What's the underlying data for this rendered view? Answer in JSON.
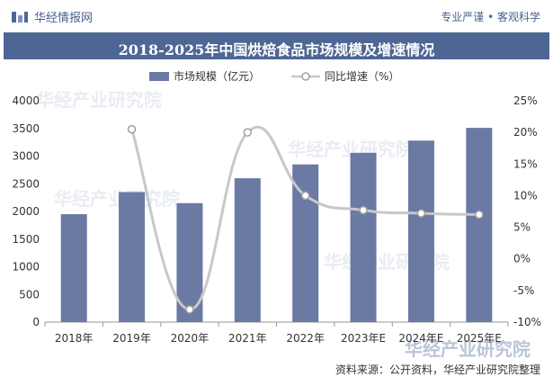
{
  "header": {
    "brand_name": "华经情报网",
    "slogan": "专业严谨 • 客观科学"
  },
  "title": "2018-2025年中国烘焙食品市场规模及增速情况",
  "legend": {
    "bar_label": "市场规模（亿元）",
    "line_label": "同比增速（%）"
  },
  "watermark": "华经产业研究院",
  "source": "资料来源：公开资料，华经产业研究院整理",
  "colors": {
    "bar": "#6a7aa3",
    "line": "#c8c8c8",
    "title_bg": "#4e6694",
    "marker": "#ffffff"
  },
  "chart_data": {
    "type": "bar",
    "categories": [
      "2018年",
      "2019年",
      "2020年",
      "2021年",
      "2022年",
      "2023年E",
      "2024年E",
      "2025年E"
    ],
    "series": [
      {
        "name": "市场规模（亿元）",
        "type": "bar",
        "axis": "left",
        "values": [
          1950,
          2350,
          2150,
          2600,
          2850,
          3060,
          3280,
          3510
        ]
      },
      {
        "name": "同比增速（%）",
        "type": "line",
        "axis": "right",
        "smooth": true,
        "values": [
          null,
          20.5,
          -8.0,
          20.0,
          10.0,
          7.7,
          7.2,
          7.0
        ]
      }
    ],
    "y_left": {
      "min": 0,
      "max": 4000,
      "step": 500,
      "ticks": [
        "0",
        "500",
        "1000",
        "1500",
        "2000",
        "2500",
        "3000",
        "3500",
        "4000"
      ]
    },
    "y_right": {
      "min": -10,
      "max": 25,
      "step": 5,
      "ticks": [
        "-10%",
        "-5%",
        "0%",
        "5%",
        "10%",
        "15%",
        "20%",
        "25%"
      ]
    },
    "grid": false,
    "legend_position": "top-center"
  }
}
